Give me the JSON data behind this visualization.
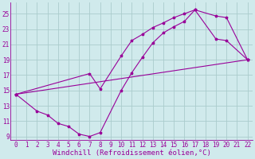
{
  "bg_color": "#d0eaec",
  "line_color": "#990099",
  "grid_color": "#aacccc",
  "xlabel": "Windchill (Refroidissement éolien,°C)",
  "xlabel_fontsize": 6.5,
  "xtick_fontsize": 5.5,
  "ytick_fontsize": 5.5,
  "ylim": [
    8.5,
    26.5
  ],
  "xlim": [
    -0.5,
    22.5
  ],
  "xticks": [
    0,
    1,
    2,
    3,
    4,
    5,
    6,
    7,
    8,
    9,
    10,
    11,
    12,
    13,
    14,
    15,
    16,
    17,
    18,
    19,
    20,
    21,
    22
  ],
  "yticks": [
    9,
    11,
    13,
    15,
    17,
    19,
    21,
    23,
    25
  ],
  "line1_x": [
    0,
    22
  ],
  "line1_y": [
    14.5,
    19.0
  ],
  "line2_x": [
    0,
    2,
    3,
    4,
    5,
    6,
    7,
    8,
    10,
    11,
    12,
    13,
    14,
    15,
    16,
    17,
    19,
    20,
    22
  ],
  "line2_y": [
    14.5,
    12.3,
    11.8,
    10.7,
    10.3,
    9.3,
    9.0,
    9.5,
    15.0,
    17.3,
    19.3,
    21.2,
    22.5,
    23.3,
    24.0,
    25.5,
    24.7,
    24.5,
    19.0
  ],
  "line3_x": [
    0,
    7,
    8,
    10,
    11,
    12,
    13,
    14,
    15,
    16,
    17,
    19,
    20,
    22
  ],
  "line3_y": [
    14.5,
    17.2,
    15.2,
    19.5,
    21.5,
    22.3,
    23.2,
    23.8,
    24.5,
    25.0,
    25.5,
    21.7,
    21.5,
    19.0
  ]
}
